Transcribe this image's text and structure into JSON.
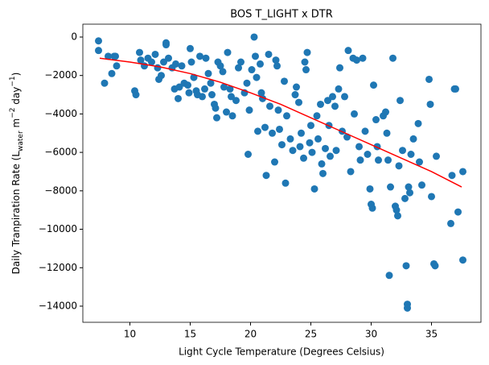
{
  "chart_data": {
    "type": "scatter",
    "title": "BOS T_LIGHT x DTR",
    "xlabel": "Light Cycle Temperature (Degrees Celsius)",
    "ylabel_parts": [
      {
        "text": "Daily Tranpiration Rate (L"
      },
      {
        "text": "water",
        "shift": "sub"
      },
      {
        "text": " m"
      },
      {
        "text": "−2",
        "shift": "sup"
      },
      {
        "text": " day"
      },
      {
        "text": "−1",
        "shift": "sup"
      },
      {
        "text": ")"
      }
    ],
    "xlim": [
      6.1,
      39.1
    ],
    "ylim": [
      -14840,
      670
    ],
    "xticks": [
      10,
      15,
      20,
      25,
      30,
      35
    ],
    "yticks": [
      0,
      {
        "value": -2000,
        "label": "−2000"
      },
      {
        "value": -4000,
        "label": "−4000"
      },
      {
        "value": -6000,
        "label": "−6000"
      },
      {
        "value": -8000,
        "label": "−8000"
      },
      {
        "value": -10000,
        "label": "−10000"
      },
      {
        "value": -12000,
        "label": "−12000"
      },
      {
        "value": -14000,
        "label": "−14000"
      }
    ],
    "grid": false,
    "series": [
      {
        "style": "marker",
        "color": "#1f77b4",
        "x": [
          7.4,
          7.4,
          7.9,
          8.2,
          8.5,
          8.7,
          8.9,
          8.8,
          10.4,
          10.5,
          10.8,
          10.9,
          11.2,
          11.5,
          11.8,
          12.1,
          12.3,
          12.4,
          12.6,
          12.8,
          13.0,
          13.0,
          13.2,
          13.5,
          13.7,
          13.8,
          14.0,
          14.1,
          14.3,
          14.5,
          14.8,
          14.9,
          15.0,
          15.1,
          15.3,
          15.5,
          15.6,
          15.8,
          16.0,
          16.2,
          16.3,
          16.5,
          16.7,
          16.8,
          17.0,
          17.1,
          17.2,
          17.3,
          17.5,
          17.7,
          17.8,
          18.0,
          18.1,
          18.3,
          18.4,
          18.5,
          18.8,
          19.0,
          19.2,
          19.5,
          19.7,
          19.8,
          19.9,
          20.1,
          20.3,
          20.4,
          20.5,
          20.6,
          20.8,
          20.9,
          21.0,
          21.2,
          21.3,
          21.5,
          21.6,
          21.8,
          22.0,
          22.1,
          22.2,
          22.3,
          22.4,
          22.6,
          22.8,
          22.9,
          23.0,
          23.3,
          23.5,
          23.7,
          23.8,
          24.0,
          24.1,
          24.2,
          24.4,
          24.5,
          24.6,
          24.7,
          24.9,
          25.0,
          25.1,
          25.3,
          25.5,
          25.6,
          25.8,
          25.9,
          26.0,
          26.2,
          26.4,
          26.5,
          26.6,
          26.8,
          27.0,
          27.1,
          27.3,
          27.4,
          27.6,
          27.8,
          28.0,
          28.1,
          28.3,
          28.5,
          28.6,
          28.8,
          29.0,
          29.1,
          29.3,
          29.5,
          29.7,
          29.9,
          30.0,
          30.1,
          30.2,
          30.4,
          30.5,
          30.6,
          31.0,
          31.2,
          31.3,
          31.4,
          31.5,
          31.6,
          31.8,
          32.0,
          32.1,
          32.2,
          32.3,
          32.4,
          32.6,
          32.8,
          32.9,
          33.0,
          33.0,
          33.1,
          33.2,
          33.3,
          33.5,
          33.9,
          34.0,
          34.2,
          34.8,
          34.9,
          35.0,
          35.2,
          35.3,
          35.4,
          36.6,
          36.7,
          36.9,
          37.0,
          37.2,
          37.6,
          37.6
        ],
        "values": [
          -200,
          -700,
          -2400,
          -1000,
          -1900,
          -1000,
          -1500,
          -1000,
          -2800,
          -3000,
          -800,
          -1200,
          -1500,
          -1100,
          -1300,
          -900,
          -1600,
          -2200,
          -2000,
          -1300,
          -400,
          -300,
          -1100,
          -1600,
          -2700,
          -1400,
          -3200,
          -2600,
          -1500,
          -2400,
          -2500,
          -2900,
          -600,
          -1300,
          -2100,
          -2800,
          -3000,
          -1000,
          -3100,
          -2700,
          -1100,
          -1900,
          -2400,
          -3000,
          -3500,
          -3700,
          -4200,
          -1300,
          -1500,
          -1800,
          -2600,
          -3900,
          -800,
          -2700,
          -3100,
          -4100,
          -3300,
          -1600,
          -1300,
          -2900,
          -2400,
          -6100,
          -3800,
          -1700,
          0,
          -1000,
          -2100,
          -4900,
          -1400,
          -2900,
          -3200,
          -4700,
          -7200,
          -900,
          -3600,
          -5000,
          -6500,
          -1200,
          -1500,
          -3800,
          -4800,
          -5600,
          -2300,
          -7600,
          -4100,
          -5300,
          -5900,
          -3000,
          -2600,
          -3400,
          -5700,
          -5000,
          -6300,
          -1300,
          -1700,
          -800,
          -5500,
          -4600,
          -6000,
          -7900,
          -4100,
          -5300,
          -3500,
          -6600,
          -7100,
          -5800,
          -3300,
          -4600,
          -6200,
          -3100,
          -3600,
          -5900,
          -2700,
          -1600,
          -4900,
          -3100,
          -5200,
          -700,
          -7000,
          -1100,
          -4000,
          -1200,
          -5700,
          -6400,
          -1100,
          -4900,
          -6100,
          -7900,
          -8700,
          -8900,
          -2500,
          -4300,
          -5700,
          -6400,
          -4100,
          -3900,
          -5000,
          -6400,
          -12400,
          -7800,
          -1100,
          -8800,
          -9000,
          -9300,
          -6700,
          -3300,
          -5900,
          -8400,
          -11900,
          -13900,
          -14100,
          -7800,
          -8100,
          -6100,
          -5300,
          -4500,
          -6500,
          -7700,
          -2200,
          -3500,
          -8300,
          -11800,
          -11900,
          -6200,
          -9700,
          -7200,
          -2700,
          -2700,
          -9100,
          -7000,
          -11600
        ]
      },
      {
        "style": "line",
        "color": "#ff0000",
        "x": [
          7.5,
          10,
          12.5,
          15,
          17.5,
          20,
          22.5,
          25,
          27.5,
          30,
          32.5,
          35,
          37.5
        ],
        "values": [
          -1100,
          -1300,
          -1550,
          -1900,
          -2350,
          -2900,
          -3500,
          -4200,
          -4900,
          -5600,
          -6300,
          -7000,
          -7800
        ]
      }
    ]
  }
}
